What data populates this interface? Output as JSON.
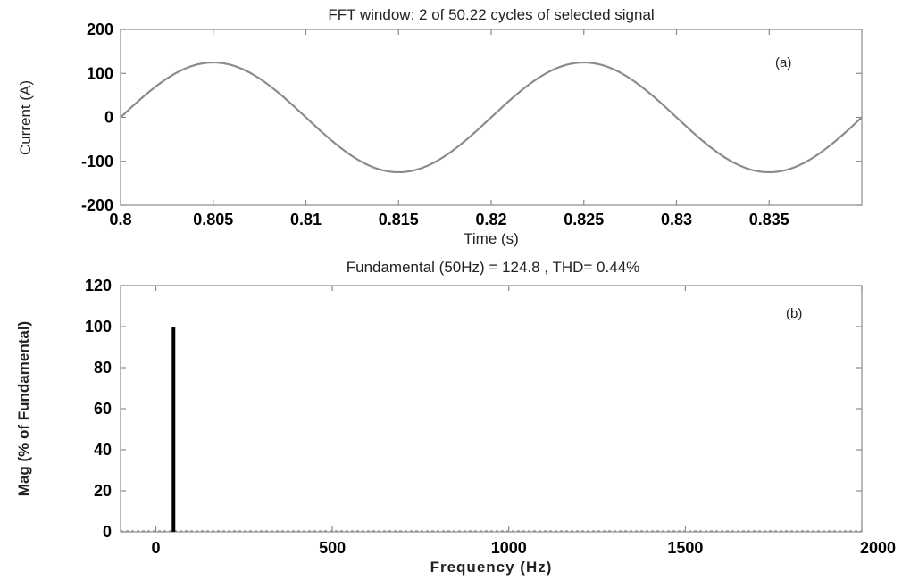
{
  "chart_data": [
    {
      "type": "line",
      "title": "FFT window: 2 of 50.22 cycles of selected signal",
      "xlabel": "Time (s)",
      "ylabel": "Current (A)",
      "annotation": "(a)",
      "xlim": [
        0.8,
        0.84
      ],
      "ylim": [
        -200,
        200
      ],
      "xticks": [
        0.8,
        0.805,
        0.81,
        0.815,
        0.82,
        0.825,
        0.83,
        0.835
      ],
      "xtick_labels": [
        "0.8",
        "0.805",
        "0.81",
        "0.815",
        "0.82",
        "0.825",
        "0.83",
        "0.835"
      ],
      "yticks": [
        -200,
        -100,
        0,
        100,
        200
      ],
      "ytick_labels": [
        "-200",
        "-100",
        "0",
        "100",
        "200"
      ],
      "series": [
        {
          "amplitude": 124.8,
          "frequency_hz": 50,
          "peak_time": 0.805,
          "x_start": 0.8,
          "x_end": 0.84,
          "color": "#8c8c8c"
        }
      ]
    },
    {
      "type": "bar",
      "title": "Fundamental (50Hz) = 124.8 , THD= 0.44%",
      "xlabel": "Frequency (Hz)",
      "ylabel": "Mag (% of Fundamental)",
      "annotation": "(b)",
      "xlim": [
        -100,
        2000
      ],
      "ylim": [
        0,
        120
      ],
      "xticks": [
        0,
        500,
        1000,
        1500,
        2000
      ],
      "xtick_labels": [
        "0",
        "500",
        "1000",
        "1500",
        "2000"
      ],
      "yticks": [
        0,
        20,
        40,
        60,
        80,
        100,
        120
      ],
      "ytick_labels": [
        "0",
        "20",
        "40",
        "60",
        "80",
        "100",
        "120"
      ],
      "x": [
        50
      ],
      "values": [
        100
      ],
      "color": "#000000"
    }
  ]
}
